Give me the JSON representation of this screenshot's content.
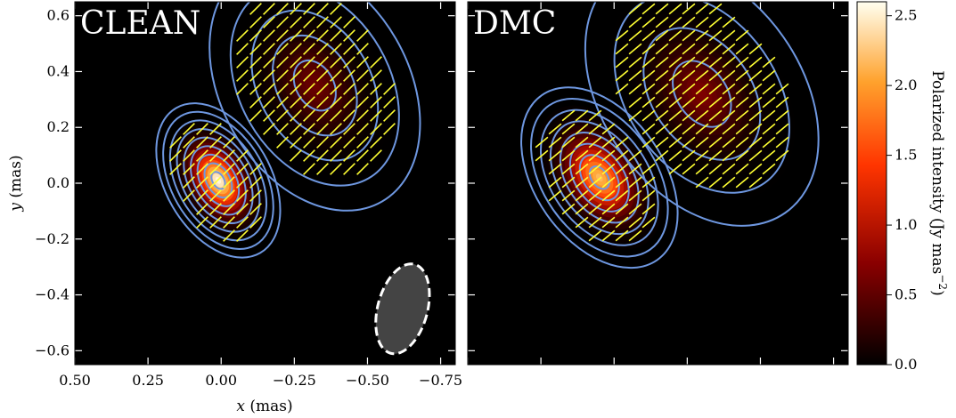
{
  "chart_data": [
    {
      "type": "heatmap",
      "panel_title": "CLEAN",
      "xlabel": "x (mas)",
      "ylabel": "y (mas)",
      "xlim": [
        0.5,
        -0.8
      ],
      "ylim": [
        -0.65,
        0.65
      ],
      "x_ticks": [
        0.5,
        0.25,
        0.0,
        -0.25,
        -0.5,
        -0.75
      ],
      "x_tick_labels": [
        "0.50",
        "0.25",
        "0.00",
        "−0.25",
        "−0.50",
        "−0.75"
      ],
      "y_ticks": [
        0.6,
        0.4,
        0.2,
        0.0,
        -0.2,
        -0.4,
        -0.6
      ],
      "y_tick_labels": [
        "0.6",
        "0.4",
        "0.2",
        "0.0",
        "−0.2",
        "−0.4",
        "−0.6"
      ],
      "components": [
        {
          "x": 0.01,
          "y": 0.01,
          "peak": 2.6,
          "major_sigma": 0.075,
          "minor_sigma": 0.045,
          "pa_deg": 30
        },
        {
          "x": -0.32,
          "y": 0.35,
          "peak": 0.6,
          "major_sigma": 0.12,
          "minor_sigma": 0.08,
          "pa_deg": 30
        }
      ],
      "contour_levels": 9,
      "beam": {
        "x": -0.62,
        "y": -0.45,
        "major": 0.33,
        "minor": 0.17,
        "pa_deg": 15
      },
      "evpa_deg": 45
    },
    {
      "type": "heatmap",
      "panel_title": "DMC",
      "xlim": [
        0.5,
        -0.8
      ],
      "ylim": [
        -0.65,
        0.65
      ],
      "components": [
        {
          "x": 0.05,
          "y": 0.02,
          "peak": 2.2,
          "major_sigma": 0.09,
          "minor_sigma": 0.055,
          "pa_deg": 35
        },
        {
          "x": -0.3,
          "y": 0.32,
          "peak": 0.7,
          "major_sigma": 0.13,
          "minor_sigma": 0.085,
          "pa_deg": 35
        }
      ],
      "contour_levels": 8,
      "evpa_deg": 40
    }
  ],
  "colorbar": {
    "label": "Polarized intensity (Jy mas",
    "label_exp": "−2",
    "label_close": ")",
    "range": [
      0,
      2.6
    ],
    "ticks": [
      0.0,
      0.5,
      1.0,
      1.5,
      2.0,
      2.5
    ],
    "tick_labels": [
      "0.0",
      "0.5",
      "1.0",
      "1.5",
      "2.0",
      "2.5"
    ],
    "colormap": "afmhot"
  },
  "colors": {
    "contour": "#6e97e0",
    "vector": "#ffff33",
    "background": "#000000",
    "beam_fill": "#444444",
    "beam_edge": "#ffffff"
  }
}
